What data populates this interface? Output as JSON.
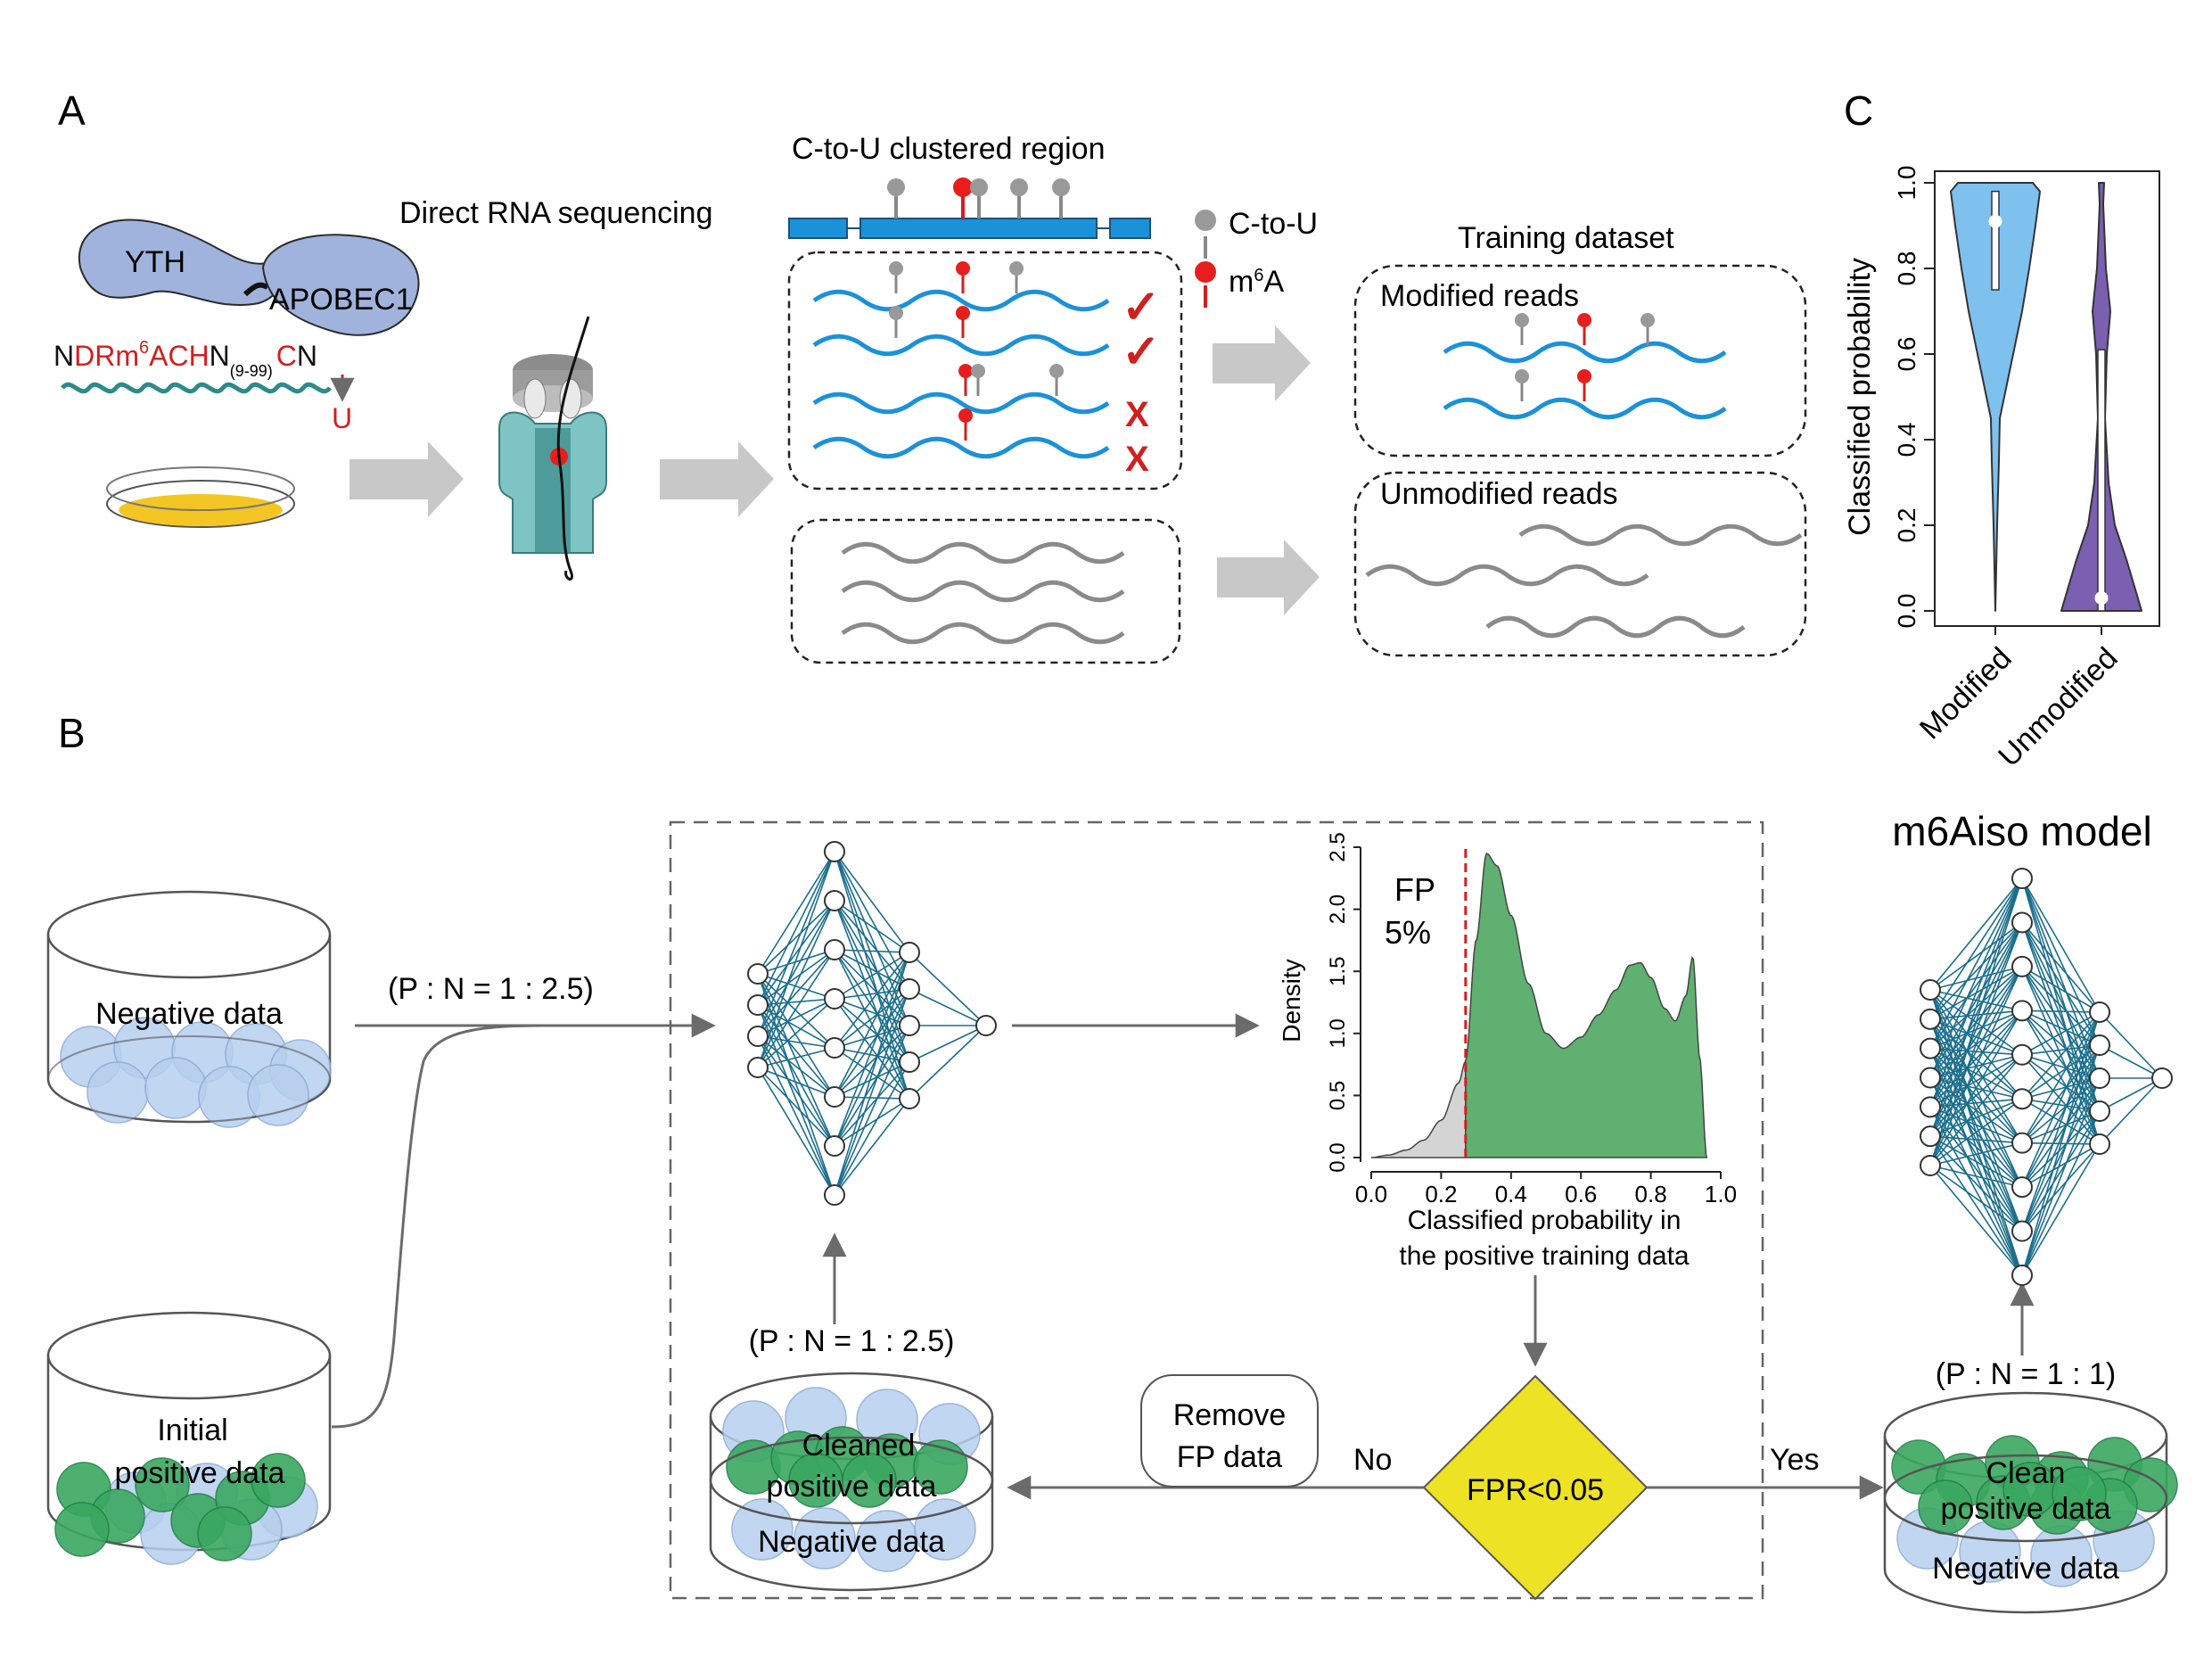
{
  "panels": {
    "a": "A",
    "b": "B",
    "c": "C"
  },
  "a": {
    "yth": "YTH",
    "apobec": "APOBEC1",
    "motif_n": "N",
    "motif_red": "DRm",
    "motif_sup": "6",
    "motif_ach": "ACH",
    "motif_n2": "N",
    "motif_sub": "(9-99)",
    "motif_c": "C",
    "motif_n3": "N",
    "motif_u": "U",
    "drs": "Direct RNA sequencing",
    "ctou_region": "C-to-U clustered region",
    "legend_ctou": "C-to-U",
    "legend_m6a_pre": "m",
    "legend_m6a_sup": "6",
    "legend_m6a_post": "A",
    "training": "Training dataset",
    "modified": "Modified reads",
    "unmodified": "Unmodified reads",
    "check": "✓",
    "cross": "X"
  },
  "b": {
    "negative": "Negative data",
    "initial_1": "Initial",
    "initial_2": "positive data",
    "ratio_1": "(P : N = 1 : 2.5)",
    "ratio_2": "(P : N = 1 : 2.5)",
    "ratio_3": "(P : N = 1 : 1)",
    "cleaned_1": "Cleaned",
    "cleaned_2": "positive data",
    "negative_2": "Negative data",
    "clean_1": "Clean",
    "clean_2": "positive data",
    "negative_3": "Negative data",
    "remove_1": "Remove",
    "remove_2": "FP data",
    "no": "No",
    "yes": "Yes",
    "decision": "FPR<0.05",
    "model_title": "m6Aiso model",
    "fp_1": "FP",
    "fp_2": "5%",
    "colors": {
      "nn": "#1b6e8c",
      "density_fill": "#5fb071",
      "fp_fill": "#d4d4d4",
      "threshold": "#d11f1f",
      "diamond": "#ede324"
    }
  },
  "chart_data": [
    {
      "type": "area",
      "panel": "B",
      "title": "",
      "xlabel": "Classified probability in the positive training data",
      "ylabel": "Density",
      "xlim": [
        0,
        1
      ],
      "ylim": [
        0,
        2.5
      ],
      "xticks": [
        "0.0",
        "0.2",
        "0.4",
        "0.6",
        "0.8",
        "1.0"
      ],
      "yticks": [
        "0.0",
        "0.5",
        "1.0",
        "1.5",
        "2.0",
        "2.5"
      ],
      "threshold": 0.27,
      "x": [
        0.0,
        0.05,
        0.1,
        0.15,
        0.2,
        0.25,
        0.27,
        0.3,
        0.33,
        0.36,
        0.4,
        0.45,
        0.5,
        0.55,
        0.6,
        0.65,
        0.7,
        0.74,
        0.77,
        0.8,
        0.84,
        0.87,
        0.9,
        0.92,
        0.94,
        0.96
      ],
      "y": [
        0.0,
        0.02,
        0.06,
        0.14,
        0.3,
        0.6,
        0.78,
        1.75,
        2.45,
        2.35,
        1.95,
        1.4,
        1.0,
        0.88,
        0.97,
        1.15,
        1.35,
        1.55,
        1.57,
        1.45,
        1.2,
        1.1,
        1.3,
        1.62,
        0.8,
        0.0
      ],
      "grid": false
    },
    {
      "type": "violin",
      "panel": "C",
      "title": "",
      "ylabel": "Classified probability",
      "ylim": [
        0,
        1
      ],
      "yticks": [
        "0.0",
        "0.2",
        "0.4",
        "0.6",
        "0.8",
        "1.0"
      ],
      "categories": [
        "Modified",
        "Unmodified"
      ],
      "medians": [
        0.91,
        0.03
      ],
      "q1": [
        0.75,
        0.0
      ],
      "q3": [
        0.98,
        0.61
      ],
      "colors": [
        "#7ec0ee",
        "#7b5fb0"
      ]
    }
  ]
}
